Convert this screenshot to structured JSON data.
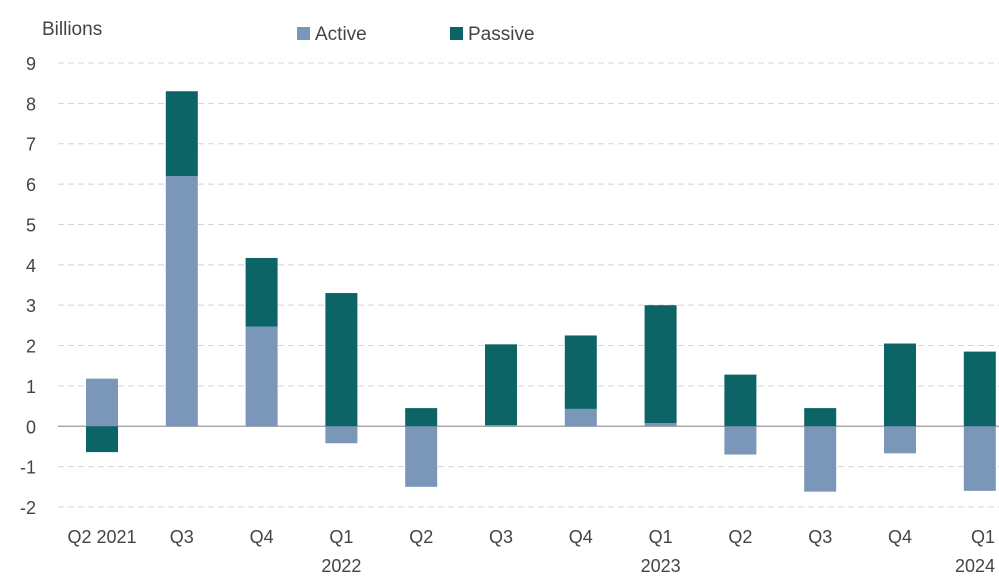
{
  "chart_data": {
    "type": "bar",
    "stacked": true,
    "y_unit_label": "Billions",
    "categories": [
      "Q2 2021",
      "Q3",
      "Q4",
      "Q1 2022",
      "Q2",
      "Q3",
      "Q4",
      "Q1 2023",
      "Q2",
      "Q3",
      "Q4",
      "Q1 2024"
    ],
    "category_labels": [
      [
        "Q2 2021"
      ],
      [
        "Q3"
      ],
      [
        "Q4"
      ],
      [
        "Q1",
        "2022"
      ],
      [
        "Q2"
      ],
      [
        "Q3"
      ],
      [
        "Q4"
      ],
      [
        "Q1",
        "2023"
      ],
      [
        "Q2"
      ],
      [
        "Q3"
      ],
      [
        "Q4"
      ],
      [
        "Q1",
        "2024"
      ]
    ],
    "series": [
      {
        "name": "Active",
        "color": "#7a96b8",
        "values": [
          1.18,
          6.2,
          2.47,
          -0.42,
          -1.5,
          0.03,
          0.43,
          0.08,
          -0.7,
          -1.62,
          -0.67,
          -1.6
        ]
      },
      {
        "name": "Passive",
        "color": "#0c6466",
        "values": [
          -0.64,
          2.1,
          1.7,
          3.3,
          0.45,
          2.0,
          1.82,
          2.92,
          1.28,
          0.45,
          2.05,
          1.85
        ]
      }
    ],
    "ylim": [
      -2,
      9
    ],
    "yticks": [
      -2,
      -1,
      0,
      1,
      2,
      3,
      4,
      5,
      6,
      7,
      8,
      9
    ],
    "grid": true,
    "legend_position": "top"
  }
}
